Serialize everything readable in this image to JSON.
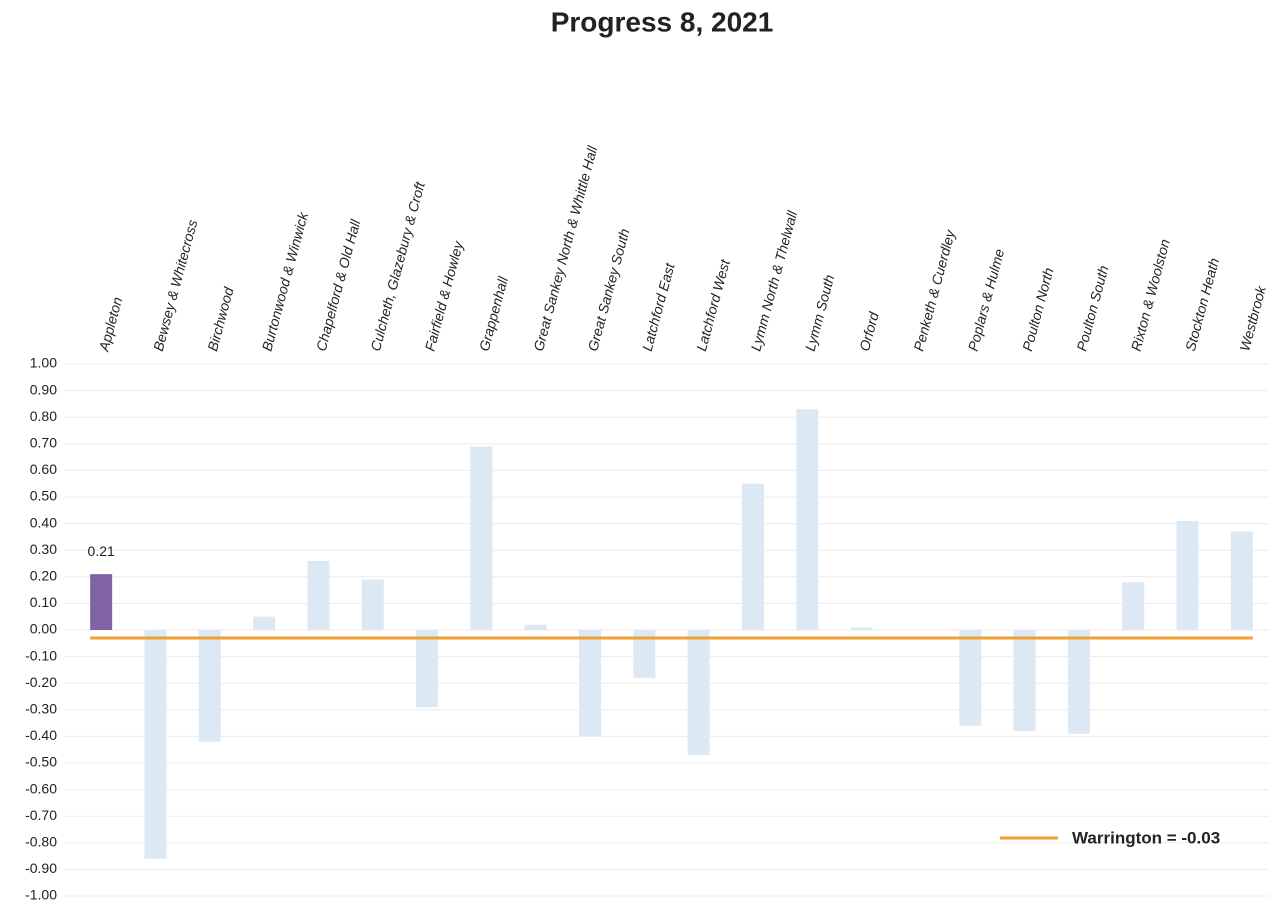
{
  "chart_data": {
    "type": "bar",
    "title": "Progress 8, 2021",
    "categories": [
      "Appleton",
      "Bewsey & Whitecross",
      "Birchwood",
      "Burtonwood & Winwick",
      "Chapelford & Old Hall",
      "Culcheth, Glazebury & Croft",
      "Fairfield & Howley",
      "Grappenhall",
      "Great Sankey North & Whittle Hall",
      "Great Sankey South",
      "Latchford East",
      "Latchford West",
      "Lymm North & Thelwall",
      "Lymm South",
      "Orford",
      "Penketh & Cuerdley",
      "Poplars & Hulme",
      "Poulton North",
      "Poulton South",
      "Rixton & Woolston",
      "Stockton Heath",
      "Westbrook"
    ],
    "values": [
      0.21,
      -0.86,
      -0.42,
      0.05,
      0.26,
      0.19,
      -0.29,
      0.69,
      0.02,
      -0.4,
      -0.18,
      -0.47,
      0.55,
      0.83,
      0.01,
      0.0,
      -0.36,
      -0.38,
      -0.39,
      0.18,
      0.41,
      0.37
    ],
    "color": "#dde8f5",
    "highlight_index": 0,
    "highlight_color": "#7f63a3",
    "ylim": [
      -1,
      1
    ],
    "yticks": [
      {
        "value": 1,
        "label": "1.00"
      },
      {
        "value": 0.9,
        "label": "0.90"
      },
      {
        "value": 0.8,
        "label": "0.80"
      },
      {
        "value": 0.7,
        "label": "0.70"
      },
      {
        "value": 0.6,
        "label": "0.60"
      },
      {
        "value": 0.5,
        "label": "0.50"
      },
      {
        "value": 0.4,
        "label": "0.40"
      },
      {
        "value": 0.3,
        "label": "0.30"
      },
      {
        "value": 0.2,
        "label": "0.20"
      },
      {
        "value": 0.1,
        "label": "0.10"
      },
      {
        "value": 0,
        "label": "0.00"
      },
      {
        "value": -0.1,
        "label": "-0.10"
      },
      {
        "value": -0.2,
        "label": "-0.20"
      },
      {
        "value": -0.3,
        "label": "-0.30"
      },
      {
        "value": -0.4,
        "label": "-0.40"
      },
      {
        "value": -0.5,
        "label": "-0.50"
      },
      {
        "value": -0.6,
        "label": "-0.60"
      },
      {
        "value": -0.7,
        "label": "-0.70"
      },
      {
        "value": -0.8,
        "label": "-0.80"
      },
      {
        "value": -0.9,
        "label": "-0.90"
      },
      {
        "value": -1,
        "label": "-1.00"
      }
    ],
    "grid": true,
    "reference_line": {
      "name": "Warrington = -0.03",
      "value": -0.03,
      "color": "#f0a030"
    }
  }
}
